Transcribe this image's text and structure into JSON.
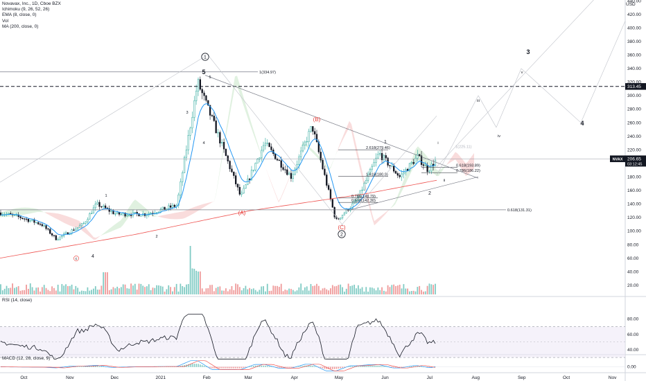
{
  "window": {
    "currency": "USD"
  },
  "legend": {
    "title": "Novavax, Inc., 1D, Cboe BZX",
    "indicators": [
      "Ichimoku (9, 26, 52, 26)",
      "EMA (8, close, 0)",
      "Vol",
      "MA (200, close, 0)"
    ]
  },
  "rsi_legend": "RSI (14, close)",
  "macd_legend": "MACD (12, 26, close, 9)",
  "price_badge": {
    "symbol": "NVAX",
    "price": "206.65",
    "countdown": "03:12:45"
  },
  "level_badge": "313.45",
  "colors": {
    "up": "#26a69a",
    "down": "#131722",
    "ema": "#2196f3",
    "ma200": "#ef5350",
    "cloud_bull": "#a5d6a7",
    "cloud_bear": "#ef9a9a",
    "rsi": "#131722",
    "macd": "#2196f3",
    "signal": "#ef5350"
  },
  "annotations": {
    "fib_top": "1(334.97)",
    "fib_bottom": "0.618(131.31)",
    "ext_2618": "2.618(279.46)",
    "ext_1618": "1.618(180.9)",
    "ret_0618": "0.618(193.89)",
    "ret_0786": "0.786(186.22)",
    "low_0786": "0.786(148.79)",
    "low_0618": "0.618(142.30)",
    "ext_1_faded": "1(225.11)"
  },
  "waves": {
    "circle_1": "1",
    "circle_2": "2",
    "w5": "5",
    "w5_small": "5",
    "w3_small": "3",
    "w4_small": "4",
    "w1_small": "1",
    "w2_small": "2",
    "w4": "4",
    "wc_small": "c",
    "wA": "(A)",
    "wB": "(B)",
    "wC": "(C)",
    "w1_right": "1",
    "w2_right": "2",
    "wi": "i",
    "wii": "ii",
    "wiii": "iii",
    "wiv": "iv",
    "wv": "v",
    "w3_big": "3",
    "w4_big": "4"
  },
  "chart_data": [
    {
      "type": "candlestick",
      "title": "Novavax, Inc., 1D, Cboe BZX",
      "x_ticks": [
        "Oct",
        "Nov",
        "Dec",
        "2021",
        "Feb",
        "Mar",
        "Apr",
        "May",
        "Jun",
        "Jul",
        "Aug",
        "Sep",
        "Oct",
        "Nov"
      ],
      "y_ticks": [
        20.0,
        40.0,
        60.0,
        80.0,
        100.0,
        120.0,
        140.0,
        160.0,
        180.0,
        200.0,
        220.0,
        240.0,
        260.0,
        280.0,
        300.0,
        320.0,
        340.0,
        360.0,
        380.0,
        400.0,
        420.0,
        440.0
      ],
      "ylim": [
        10,
        445
      ],
      "last_price": 206.65,
      "horizontal_levels": [
        334.97,
        313.45,
        206.65,
        131.31
      ],
      "close_path": [
        {
          "date": "2020-09-28",
          "close": 127
        },
        {
          "date": "2020-10-12",
          "close": 120
        },
        {
          "date": "2020-10-26",
          "close": 110
        },
        {
          "date": "2020-11-05",
          "close": 88
        },
        {
          "date": "2020-11-23",
          "close": 110
        },
        {
          "date": "2020-12-02",
          "close": 140
        },
        {
          "date": "2020-12-15",
          "close": 125
        },
        {
          "date": "2021-01-04",
          "close": 125
        },
        {
          "date": "2021-01-25",
          "close": 138
        },
        {
          "date": "2021-02-08",
          "close": 320
        },
        {
          "date": "2021-02-22",
          "close": 240
        },
        {
          "date": "2021-03-09",
          "close": 150
        },
        {
          "date": "2021-03-25",
          "close": 230
        },
        {
          "date": "2021-04-12",
          "close": 180
        },
        {
          "date": "2021-04-26",
          "close": 255
        },
        {
          "date": "2021-05-12",
          "close": 115
        },
        {
          "date": "2021-05-26",
          "close": 145
        },
        {
          "date": "2021-06-10",
          "close": 215
        },
        {
          "date": "2021-06-24",
          "close": 180
        },
        {
          "date": "2021-07-06",
          "close": 210
        },
        {
          "date": "2021-07-13",
          "close": 190
        },
        {
          "date": "2021-07-19",
          "close": 206.65
        }
      ],
      "ma200_path": [
        {
          "date": "2020-09-28",
          "value": 60
        },
        {
          "date": "2020-12-28",
          "value": 95
        },
        {
          "date": "2021-03-15",
          "value": 130
        },
        {
          "date": "2021-06-01",
          "value": 155
        },
        {
          "date": "2021-07-19",
          "value": 175
        }
      ]
    },
    {
      "type": "bar",
      "title": "Vol",
      "ylabel": "Vol"
    },
    {
      "type": "line",
      "title": "RSI (14, close)",
      "y_ticks": [
        40.0,
        60.0,
        80.0
      ],
      "ylim": [
        25,
        90
      ]
    },
    {
      "type": "line",
      "title": "MACD (12, 26, close, 9)",
      "y_ticks": [
        0.0
      ]
    }
  ]
}
